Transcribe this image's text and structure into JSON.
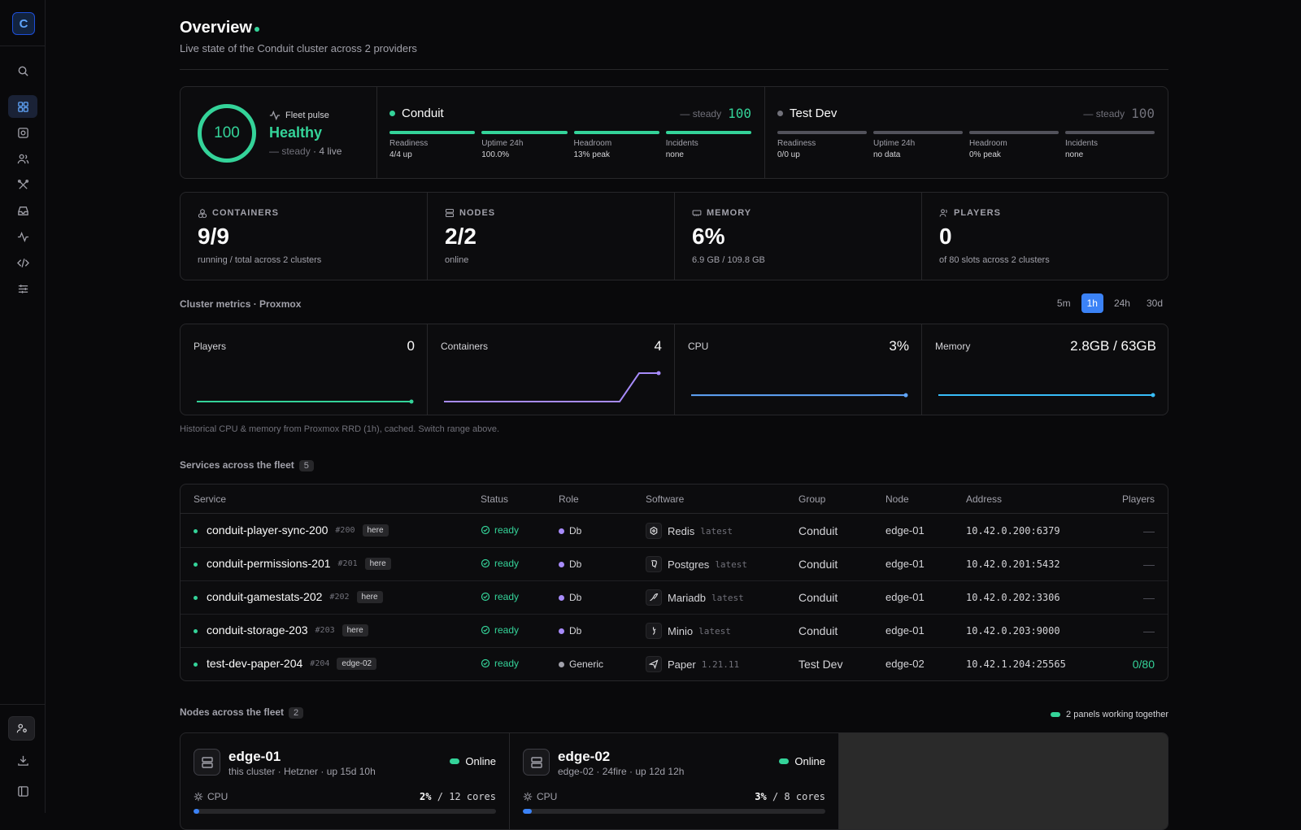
{
  "app": {
    "logo_letter": "C"
  },
  "header": {
    "title": "Overview",
    "subtitle": "Live state of the Conduit cluster across 2 providers"
  },
  "pulse": {
    "score": "100",
    "label": "Fleet pulse",
    "state": "Healthy",
    "trend": "— steady",
    "live": "· 4 live"
  },
  "clusters": [
    {
      "name": "Conduit",
      "trend": "— steady",
      "score": "100",
      "dot_color": "#34d399",
      "score_color": "#34d399",
      "bar_color": "#34d399",
      "bars": [
        {
          "label": "Readiness",
          "value": "4/4 up"
        },
        {
          "label": "Uptime 24h",
          "value": "100.0%"
        },
        {
          "label": "Headroom",
          "value": "13% peak"
        },
        {
          "label": "Incidents",
          "value": "none"
        }
      ]
    },
    {
      "name": "Test Dev",
      "trend": "— steady",
      "score": "100",
      "dot_color": "#71717a",
      "score_color": "#71717a",
      "bar_color": "#52525b",
      "bars": [
        {
          "label": "Readiness",
          "value": "0/0 up"
        },
        {
          "label": "Uptime 24h",
          "value": "no data"
        },
        {
          "label": "Headroom",
          "value": "0% peak"
        },
        {
          "label": "Incidents",
          "value": "none"
        }
      ]
    }
  ],
  "stats": [
    {
      "label": "CONTAINERS",
      "icon": "boxes-icon",
      "value": "9/9",
      "sub": "running / total across 2 clusters"
    },
    {
      "label": "NODES",
      "icon": "server-icon",
      "value": "2/2",
      "sub": "online"
    },
    {
      "label": "MEMORY",
      "icon": "memory-icon",
      "value": "6%",
      "sub": "6.9 GB / 109.8 GB"
    },
    {
      "label": "PLAYERS",
      "icon": "users-icon",
      "value": "0",
      "sub": "of 80 slots across 2 clusters"
    }
  ],
  "metrics": {
    "section_label": "Cluster metrics · Proxmox",
    "ranges": [
      "5m",
      "1h",
      "24h",
      "30d"
    ],
    "active_range": "1h",
    "hint": "Historical CPU & memory from Proxmox RRD (1h), cached. Switch range above.",
    "cards": [
      {
        "label": "Players",
        "value": "0",
        "color": "#34d399"
      },
      {
        "label": "Containers",
        "value": "4",
        "color": "#a78bfa"
      },
      {
        "label": "CPU",
        "value": "3%",
        "color": "#60a5fa"
      },
      {
        "label": "Memory",
        "value": "2.8GB / 63GB",
        "color": "#38bdf8"
      }
    ]
  },
  "chart_data": [
    {
      "type": "line",
      "title": "Players",
      "values": [
        0,
        0,
        0,
        0,
        0,
        0,
        0,
        0,
        0,
        0,
        0,
        0
      ]
    },
    {
      "type": "line",
      "title": "Containers",
      "values": [
        0,
        0,
        0,
        0,
        0,
        0,
        0,
        0,
        0,
        0,
        4,
        4
      ]
    },
    {
      "type": "line",
      "title": "CPU",
      "values": [
        3,
        3,
        3,
        3,
        3,
        3,
        3,
        3,
        3,
        3,
        3.3,
        3
      ]
    },
    {
      "type": "line",
      "title": "Memory",
      "values": [
        2.8,
        2.8,
        2.8,
        2.8,
        2.8,
        2.8,
        2.8,
        2.8,
        2.8,
        2.8,
        2.8,
        2.8
      ]
    }
  ],
  "services": {
    "section_label": "Services across the fleet",
    "count": "5",
    "columns": [
      "Service",
      "Status",
      "Role",
      "Software",
      "Group",
      "Node",
      "Address",
      "Players"
    ],
    "rows": [
      {
        "name": "conduit-player-sync-200",
        "id": "#200",
        "tag": "here",
        "status": "ready",
        "role": "Db",
        "role_color": "#a78bfa",
        "software": "Redis",
        "software_icon": "redis-icon",
        "version": "latest",
        "group": "Conduit",
        "node": "edge-01",
        "address": "10.42.0.200:6379",
        "players": "—"
      },
      {
        "name": "conduit-permissions-201",
        "id": "#201",
        "tag": "here",
        "status": "ready",
        "role": "Db",
        "role_color": "#a78bfa",
        "software": "Postgres",
        "software_icon": "postgres-icon",
        "version": "latest",
        "group": "Conduit",
        "node": "edge-01",
        "address": "10.42.0.201:5432",
        "players": "—"
      },
      {
        "name": "conduit-gamestats-202",
        "id": "#202",
        "tag": "here",
        "status": "ready",
        "role": "Db",
        "role_color": "#a78bfa",
        "software": "Mariadb",
        "software_icon": "mariadb-icon",
        "version": "latest",
        "group": "Conduit",
        "node": "edge-01",
        "address": "10.42.0.202:3306",
        "players": "—"
      },
      {
        "name": "conduit-storage-203",
        "id": "#203",
        "tag": "here",
        "status": "ready",
        "role": "Db",
        "role_color": "#a78bfa",
        "software": "Minio",
        "software_icon": "minio-icon",
        "version": "latest",
        "group": "Conduit",
        "node": "edge-01",
        "address": "10.42.0.203:9000",
        "players": "—"
      },
      {
        "name": "test-dev-paper-204",
        "id": "#204",
        "tag": "edge-02",
        "status": "ready",
        "role": "Generic",
        "role_color": "#a1a1aa",
        "software": "Paper",
        "software_icon": "paper-icon",
        "version": "1.21.11",
        "group": "Test Dev",
        "node": "edge-02",
        "address": "10.42.1.204:25565",
        "players": "0/80"
      }
    ]
  },
  "nodes": {
    "section_label": "Nodes across the fleet",
    "count": "2",
    "legend": "2 panels working together",
    "items": [
      {
        "name": "edge-01",
        "sub": "this cluster · Hetzner · up 15d 10h",
        "status": "Online",
        "cpu_label": "CPU",
        "cpu_pct": "2%",
        "cpu_sep": "/",
        "cpu_cores": "12 cores",
        "cpu_fraction": 0.02
      },
      {
        "name": "edge-02",
        "sub": "edge-02 · 24fire · up 12d 12h",
        "status": "Online",
        "cpu_label": "CPU",
        "cpu_pct": "3%",
        "cpu_sep": "/",
        "cpu_cores": "8 cores",
        "cpu_fraction": 0.03
      }
    ]
  }
}
